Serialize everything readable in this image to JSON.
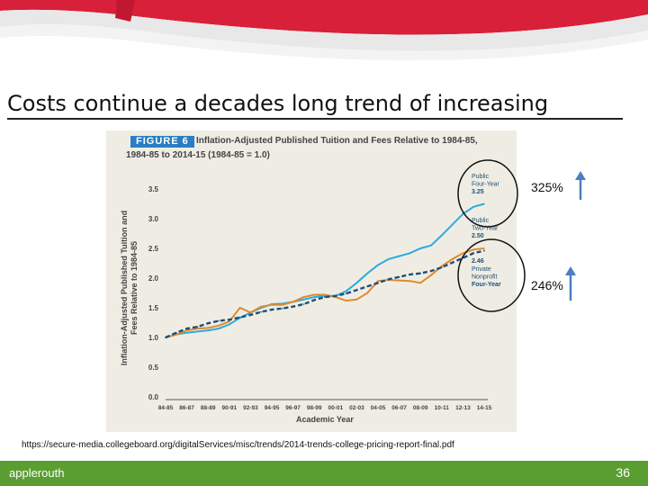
{
  "slide": {
    "title": "Costs continue a decades long trend of increasing",
    "source_url": "https://secure-media.collegeboard.org/digitalServices/misc/trends/2014-trends-college-pricing-report-final.pdf",
    "brand": "applerouth",
    "page_number": "36",
    "callouts": [
      {
        "text": "325%"
      },
      {
        "text": "246%"
      }
    ]
  },
  "colors": {
    "public_four_year": "#2eaae1",
    "public_two_year": "#e08a2e",
    "private_nonprofit": "#1f4f7a",
    "footer": "#5a9e32",
    "arrow": "#4a7fc0"
  },
  "chart_data": {
    "type": "line",
    "figure_label": "FIGURE 6",
    "title": "Inflation-Adjusted Published Tuition and Fees Relative to 1984-85,",
    "subtitle": "1984-85 to 2014-15 (1984-85 = 1.0)",
    "xlabel": "Academic Year",
    "ylabel": "Inflation-Adjusted Published Tuition and Fees Relative to 1984-85",
    "ylim": [
      0,
      3.5
    ],
    "yticks": [
      "0.0",
      "0.5",
      "1.0",
      "1.5",
      "2.0",
      "2.5",
      "3.0",
      "3.5"
    ],
    "xtick_labels": [
      "84-85",
      "86-87",
      "88-89",
      "90-91",
      "92-93",
      "94-95",
      "96-97",
      "98-99",
      "00-01",
      "02-03",
      "04-05",
      "06-07",
      "08-09",
      "10-11",
      "12-13",
      "14-15"
    ],
    "x": [
      "84-85",
      "85-86",
      "86-87",
      "87-88",
      "88-89",
      "89-90",
      "90-91",
      "91-92",
      "92-93",
      "93-94",
      "94-95",
      "95-96",
      "96-97",
      "97-98",
      "98-99",
      "99-00",
      "00-01",
      "01-02",
      "02-03",
      "03-04",
      "04-05",
      "05-06",
      "06-07",
      "07-08",
      "08-09",
      "09-10",
      "10-11",
      "11-12",
      "12-13",
      "13-14",
      "14-15"
    ],
    "series": [
      {
        "name": "Public Four-Year",
        "value_label": "3.25",
        "values": [
          1.0,
          1.05,
          1.08,
          1.1,
          1.12,
          1.15,
          1.22,
          1.33,
          1.42,
          1.5,
          1.56,
          1.57,
          1.6,
          1.64,
          1.68,
          1.7,
          1.7,
          1.78,
          1.92,
          2.08,
          2.22,
          2.32,
          2.37,
          2.42,
          2.5,
          2.55,
          2.72,
          2.9,
          3.08,
          3.2,
          3.25
        ]
      },
      {
        "name": "Public Two-Year",
        "value_label": "2.50",
        "values": [
          1.0,
          1.05,
          1.12,
          1.15,
          1.16,
          1.2,
          1.27,
          1.5,
          1.42,
          1.52,
          1.55,
          1.55,
          1.6,
          1.68,
          1.72,
          1.72,
          1.68,
          1.62,
          1.64,
          1.75,
          1.95,
          1.97,
          1.96,
          1.95,
          1.92,
          2.05,
          2.2,
          2.32,
          2.42,
          2.48,
          2.5
        ]
      },
      {
        "name": "Private Nonprofit Four-Year",
        "value_label": "2.46",
        "values": [
          1.0,
          1.08,
          1.15,
          1.18,
          1.24,
          1.28,
          1.3,
          1.34,
          1.38,
          1.43,
          1.47,
          1.49,
          1.52,
          1.56,
          1.63,
          1.68,
          1.7,
          1.74,
          1.8,
          1.86,
          1.92,
          1.98,
          2.02,
          2.06,
          2.08,
          2.12,
          2.18,
          2.26,
          2.34,
          2.42,
          2.46
        ]
      }
    ],
    "legend_placement": "right, inline labels"
  }
}
